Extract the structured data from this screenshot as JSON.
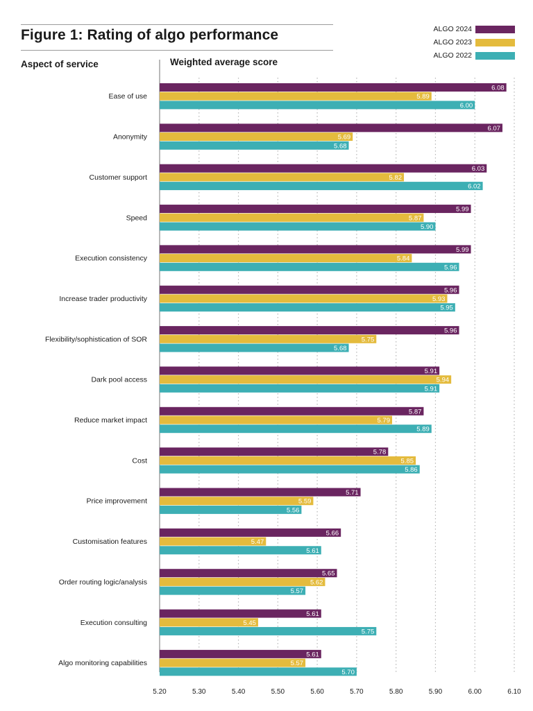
{
  "title": "Figure 1: Rating of algo performance",
  "left_heading": "Aspect of service",
  "chart_heading": "Weighted average score",
  "colors": {
    "ALGO 2024": "#6a2560",
    "ALGO 2023": "#e4bb3d",
    "ALGO 2022": "#3dafb4"
  },
  "legend": [
    {
      "label": "ALGO 2024",
      "color": "#6a2560"
    },
    {
      "label": "ALGO 2023",
      "color": "#e4bb3d"
    },
    {
      "label": "ALGO 2022",
      "color": "#3dafb4"
    }
  ],
  "chart_data": {
    "type": "bar",
    "orientation": "horizontal",
    "title": "Figure 1: Rating of algo performance",
    "xlabel": "Weighted average score",
    "ylabel": "Aspect of service",
    "xlim": [
      5.2,
      6.1
    ],
    "x_ticks": [
      "5.20",
      "5.30",
      "5.40",
      "5.50",
      "5.60",
      "5.70",
      "5.80",
      "5.90",
      "6.00",
      "6.10"
    ],
    "grid": "vertical dotted",
    "legend_position": "top-right",
    "categories": [
      "Ease of use",
      "Anonymity",
      "Customer support",
      "Speed",
      "Execution consistency",
      "Increase trader productivity",
      "Flexibility/sophistication of SOR",
      "Dark pool access",
      "Reduce market impact",
      "Cost",
      "Price improvement",
      "Customisation features",
      "Order routing logic/analysis",
      "Execution consulting",
      "Algo monitoring capabilities"
    ],
    "series": [
      {
        "name": "ALGO 2024",
        "values": [
          6.08,
          6.07,
          6.03,
          5.99,
          5.99,
          5.96,
          5.96,
          5.91,
          5.87,
          5.78,
          5.71,
          5.66,
          5.65,
          5.61,
          5.61
        ]
      },
      {
        "name": "ALGO 2023",
        "values": [
          5.89,
          5.69,
          5.82,
          5.87,
          5.84,
          5.93,
          5.75,
          5.94,
          5.79,
          5.85,
          5.59,
          5.47,
          5.62,
          5.45,
          5.57
        ]
      },
      {
        "name": "ALGO 2022",
        "values": [
          6.0,
          5.68,
          6.02,
          5.9,
          5.96,
          5.95,
          5.68,
          5.91,
          5.89,
          5.86,
          5.56,
          5.61,
          5.57,
          5.75,
          5.7
        ]
      }
    ]
  }
}
